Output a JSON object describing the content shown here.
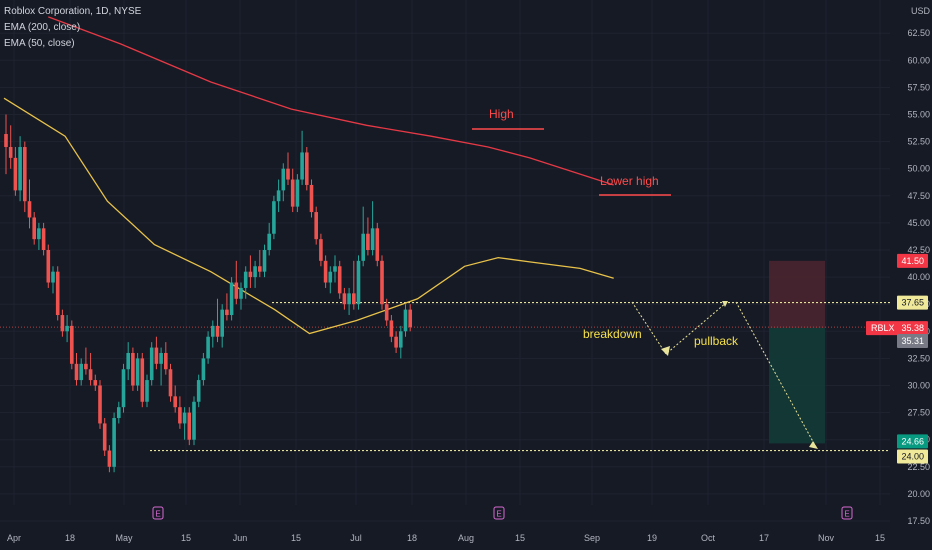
{
  "header": {
    "title": "Roblox Corporation, 1D, NYSE",
    "ema200_label": "EMA (200, close)",
    "ema50_label": "EMA (50, close)"
  },
  "colors": {
    "background": "#161a25",
    "up": "#26a69a",
    "down": "#ef5350",
    "ema200": "#e53945",
    "ema50": "#e8c24a",
    "level_line": "#e8e39a",
    "annotation_red": "#ff4b4b",
    "annotation_yellow": "#f5e14a",
    "stop_zone": "#4a2530",
    "target_zone": "#123b37"
  },
  "chart_data": {
    "type": "candlestick",
    "y_axis": {
      "unit": "USD",
      "ylim": [
        17.5,
        63.5
      ],
      "ticks": [
        "62.50",
        "60.00",
        "57.50",
        "55.00",
        "52.50",
        "50.00",
        "47.50",
        "45.00",
        "42.50",
        "40.00",
        "37.50",
        "35.00",
        "32.50",
        "30.00",
        "27.50",
        "25.00",
        "22.50",
        "20.00",
        "17.50"
      ]
    },
    "x_axis": {
      "labels": [
        "Apr",
        "18",
        "May",
        "15",
        "Jun",
        "15",
        "Jul",
        "18",
        "Aug",
        "15",
        "Sep",
        "19",
        "Oct",
        "17",
        "Nov",
        "15"
      ]
    },
    "earnings_markers": [
      "E",
      "E",
      "E"
    ],
    "series": [
      {
        "name": "EMA (200, close)",
        "color": "#e53945",
        "points": [
          [
            "Apr 10",
            64.0
          ],
          [
            "May 5",
            61.5
          ],
          [
            "Jun 1",
            58.0
          ],
          [
            "Jun 25",
            55.5
          ],
          [
            "Jul 18",
            54.0
          ],
          [
            "Aug 5",
            53.0
          ],
          [
            "Aug 22",
            52.0
          ],
          [
            "Sep 5",
            51.0
          ],
          [
            "Sep 20",
            49.5
          ],
          [
            "Sep 30",
            48.5
          ]
        ]
      },
      {
        "name": "EMA (50, close)",
        "color": "#e8c24a",
        "points": [
          [
            "Mar 29",
            56.5
          ],
          [
            "Apr 15",
            53.0
          ],
          [
            "May 1",
            47.0
          ],
          [
            "May 15",
            43.0
          ],
          [
            "Jun 1",
            40.5
          ],
          [
            "Jun 20",
            37.0
          ],
          [
            "Jul 1",
            34.8
          ],
          [
            "Jul 15",
            36.0
          ],
          [
            "Aug 1",
            38.0
          ],
          [
            "Aug 15",
            41.0
          ],
          [
            "Aug 25",
            41.8
          ],
          [
            "Sep 5",
            41.4
          ],
          [
            "Sep 20",
            40.8
          ],
          [
            "Sep 30",
            39.9
          ]
        ]
      }
    ],
    "price_labels": [
      {
        "label": "41.50",
        "kind": "stop"
      },
      {
        "label": "37.65",
        "kind": "level"
      },
      {
        "label": "RBLX",
        "value": "35.38",
        "kind": "last"
      },
      {
        "label": "35.31",
        "kind": "entry"
      },
      {
        "label": "24.66",
        "kind": "target"
      },
      {
        "label": "24.00",
        "kind": "level"
      }
    ],
    "horizontal_levels": [
      37.65,
      24.0
    ],
    "annotations": [
      "High",
      "Lower high",
      "breakdown",
      "pullback"
    ],
    "position": {
      "stop": 41.5,
      "entry": 35.31,
      "target": 24.66
    }
  },
  "candles": [
    [
      53.2,
      55.0,
      49.5,
      52.0
    ],
    [
      52.0,
      54.0,
      50.0,
      51.0
    ],
    [
      51.0,
      52.0,
      47.5,
      48.0
    ],
    [
      48.0,
      53.0,
      47.0,
      52.0
    ],
    [
      52.0,
      52.5,
      46.0,
      47.0
    ],
    [
      47.0,
      49.0,
      44.5,
      45.5
    ],
    [
      45.5,
      46.0,
      43.0,
      43.5
    ],
    [
      43.5,
      45.0,
      42.5,
      44.5
    ],
    [
      44.5,
      45.0,
      42.0,
      42.5
    ],
    [
      42.5,
      43.0,
      39.0,
      39.5
    ],
    [
      39.5,
      41.0,
      38.5,
      40.5
    ],
    [
      40.5,
      41.0,
      36.0,
      36.5
    ],
    [
      36.5,
      37.0,
      34.5,
      35.0
    ],
    [
      35.0,
      36.5,
      34.0,
      35.5
    ],
    [
      35.5,
      36.0,
      31.5,
      32.0
    ],
    [
      32.0,
      33.0,
      30.0,
      30.5
    ],
    [
      30.5,
      32.5,
      30.0,
      32.0
    ],
    [
      32.0,
      33.5,
      31.0,
      31.5
    ],
    [
      31.5,
      33.0,
      30.0,
      30.5
    ],
    [
      30.5,
      31.0,
      29.5,
      30.0
    ],
    [
      30.0,
      30.5,
      26.0,
      26.5
    ],
    [
      26.5,
      27.0,
      23.5,
      24.0
    ],
    [
      24.0,
      24.5,
      22.0,
      22.5
    ],
    [
      22.5,
      27.5,
      22.0,
      27.0
    ],
    [
      27.0,
      28.5,
      26.5,
      28.0
    ],
    [
      28.0,
      32.0,
      27.5,
      31.5
    ],
    [
      31.5,
      34.0,
      30.5,
      33.0
    ],
    [
      33.0,
      33.5,
      29.5,
      30.0
    ],
    [
      30.0,
      33.0,
      29.5,
      32.5
    ],
    [
      32.5,
      33.0,
      28.0,
      28.5
    ],
    [
      28.5,
      31.0,
      28.0,
      30.5
    ],
    [
      30.5,
      34.0,
      30.0,
      33.5
    ],
    [
      33.5,
      34.5,
      31.5,
      32.0
    ],
    [
      32.0,
      33.5,
      30.0,
      33.0
    ],
    [
      33.0,
      34.0,
      31.0,
      31.5
    ],
    [
      31.5,
      32.0,
      28.5,
      29.0
    ],
    [
      29.0,
      30.0,
      27.5,
      28.0
    ],
    [
      28.0,
      29.0,
      26.0,
      26.5
    ],
    [
      26.5,
      28.0,
      25.0,
      27.5
    ],
    [
      27.5,
      28.0,
      24.5,
      25.0
    ],
    [
      25.0,
      29.0,
      24.5,
      28.5
    ],
    [
      28.5,
      31.0,
      28.0,
      30.5
    ],
    [
      30.5,
      33.0,
      30.0,
      32.5
    ],
    [
      32.5,
      35.0,
      32.0,
      34.5
    ],
    [
      34.5,
      36.0,
      33.5,
      35.5
    ],
    [
      35.5,
      38.0,
      34.0,
      34.5
    ],
    [
      34.5,
      37.5,
      33.5,
      37.0
    ],
    [
      37.0,
      38.5,
      36.0,
      36.5
    ],
    [
      36.5,
      40.0,
      36.0,
      39.5
    ],
    [
      39.5,
      41.5,
      37.5,
      38.0
    ],
    [
      38.0,
      39.5,
      37.0,
      39.0
    ],
    [
      39.0,
      41.0,
      38.0,
      40.5
    ],
    [
      40.5,
      42.0,
      39.0,
      40.0
    ],
    [
      40.0,
      41.5,
      39.0,
      41.0
    ],
    [
      41.0,
      42.5,
      40.0,
      40.5
    ],
    [
      40.5,
      43.0,
      40.0,
      42.5
    ],
    [
      42.5,
      45.0,
      42.0,
      44.0
    ],
    [
      44.0,
      47.5,
      43.5,
      47.0
    ],
    [
      47.0,
      49.0,
      46.0,
      48.0
    ],
    [
      48.0,
      50.5,
      47.0,
      50.0
    ],
    [
      50.0,
      51.5,
      48.5,
      49.0
    ],
    [
      49.0,
      50.0,
      46.0,
      46.5
    ],
    [
      46.5,
      49.5,
      46.0,
      49.0
    ],
    [
      49.0,
      53.5,
      48.5,
      51.5
    ],
    [
      51.5,
      52.0,
      48.0,
      48.5
    ],
    [
      48.5,
      49.0,
      45.5,
      46.0
    ],
    [
      46.0,
      46.5,
      43.0,
      43.5
    ],
    [
      43.5,
      44.0,
      41.0,
      41.5
    ],
    [
      41.5,
      42.0,
      39.0,
      39.5
    ],
    [
      39.5,
      41.0,
      38.5,
      40.5
    ],
    [
      40.5,
      42.0,
      39.5,
      41.0
    ],
    [
      41.0,
      41.5,
      38.0,
      38.5
    ],
    [
      38.5,
      39.0,
      37.0,
      37.5
    ],
    [
      37.5,
      39.0,
      36.5,
      38.5
    ],
    [
      38.5,
      41.5,
      37.0,
      37.5
    ],
    [
      37.5,
      42.0,
      37.0,
      41.5
    ],
    [
      41.5,
      46.5,
      41.0,
      44.0
    ],
    [
      44.0,
      45.5,
      42.0,
      42.5
    ],
    [
      42.5,
      47.0,
      42.0,
      44.5
    ],
    [
      44.5,
      45.0,
      41.0,
      41.5
    ],
    [
      41.5,
      42.0,
      37.0,
      37.5
    ],
    [
      37.5,
      38.0,
      35.5,
      36.0
    ],
    [
      36.0,
      36.5,
      34.0,
      34.5
    ],
    [
      34.5,
      35.0,
      33.0,
      33.5
    ],
    [
      33.5,
      35.5,
      32.5,
      35.0
    ],
    [
      35.0,
      37.5,
      34.5,
      37.0
    ],
    [
      37.0,
      37.5,
      35.0,
      35.38
    ]
  ],
  "axis_labels": {
    "usd": "USD"
  }
}
